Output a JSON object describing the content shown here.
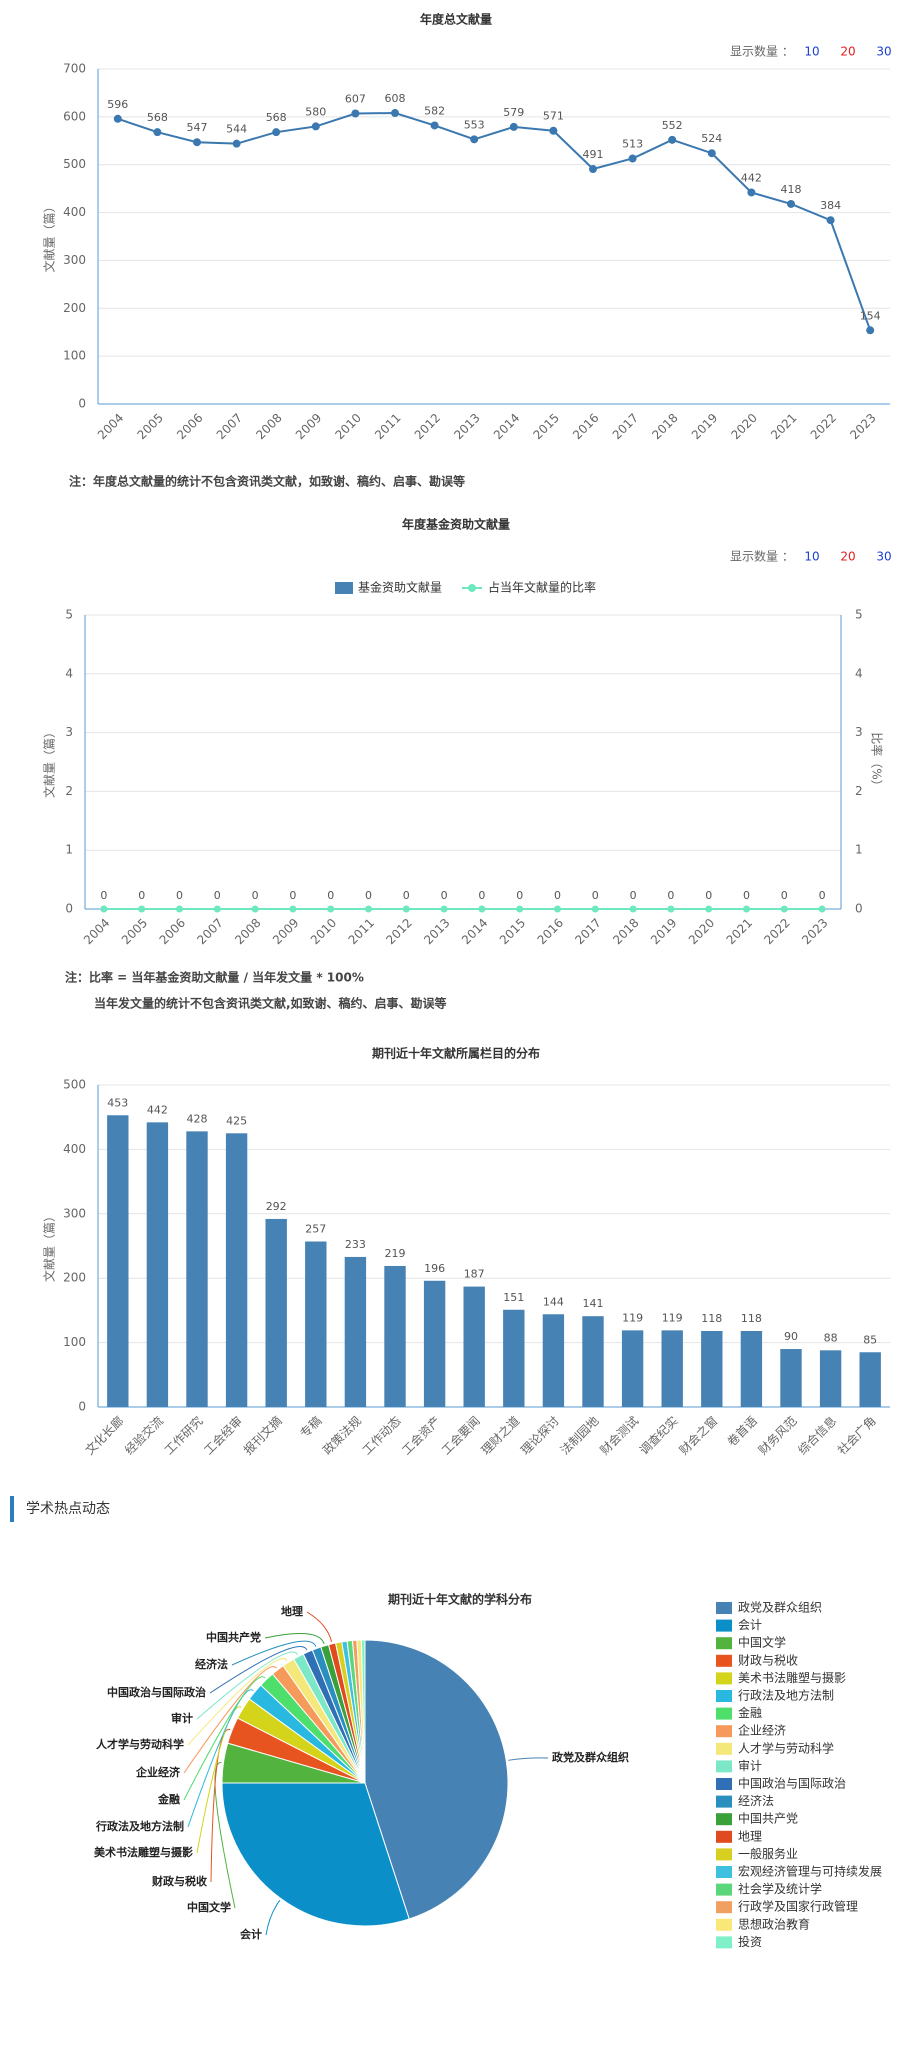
{
  "section_title": "学术热点动态",
  "chart_data": [
    {
      "type": "line",
      "title": "年度总文献量",
      "controls": {
        "label": "显示数量 ：",
        "options": [
          "10",
          "20",
          "30"
        ]
      },
      "y_label": "文献量（篇）",
      "categories": [
        "2004",
        "2005",
        "2006",
        "2007",
        "2008",
        "2009",
        "2010",
        "2011",
        "2012",
        "2013",
        "2014",
        "2015",
        "2016",
        "2017",
        "2018",
        "2019",
        "2020",
        "2021",
        "2022",
        "2023"
      ],
      "values": [
        596,
        568,
        547,
        544,
        568,
        580,
        607,
        608,
        582,
        553,
        579,
        571,
        491,
        513,
        552,
        524,
        442,
        418,
        384,
        154
      ],
      "color": "#3b78b0",
      "ylim": [
        0,
        700
      ],
      "yticks": [
        0,
        100,
        200,
        300,
        400,
        500,
        600,
        700
      ],
      "grid": true,
      "note": "注：年度总文献量的统计不包含资讯类文献，如致谢、稿约、启事、勘误等"
    },
    {
      "type": "combo",
      "title": "年度基金资助文献量",
      "controls": {
        "label": "显示数量 ：",
        "options": [
          "10",
          "20",
          "30"
        ]
      },
      "y_label": "文献量（篇）",
      "y2_label": "比率（%）",
      "categories": [
        "2004",
        "2005",
        "2006",
        "2007",
        "2008",
        "2009",
        "2010",
        "2011",
        "2012",
        "2013",
        "2014",
        "2015",
        "2016",
        "2017",
        "2018",
        "2019",
        "2020",
        "2021",
        "2022",
        "2023"
      ],
      "series": [
        {
          "name": "基金资助文献量",
          "color": "#4682b4",
          "values": [
            0,
            0,
            0,
            0,
            0,
            0,
            0,
            0,
            0,
            0,
            0,
            0,
            0,
            0,
            0,
            0,
            0,
            0,
            0,
            0
          ]
        },
        {
          "name": "占当年文献量的比率",
          "color": "#6ee8c0",
          "axis": "y2",
          "values": [
            0,
            0,
            0,
            0,
            0,
            0,
            0,
            0,
            0,
            0,
            0,
            0,
            0,
            0,
            0,
            0,
            0,
            0,
            0,
            0
          ]
        }
      ],
      "ylim": [
        0,
        5
      ],
      "yticks": [
        0,
        1,
        2,
        3,
        4,
        5
      ],
      "y2lim": [
        0,
        5
      ],
      "y2ticks": [
        0,
        1,
        2,
        3,
        4,
        5
      ],
      "grid": true,
      "notes": [
        "注：比率 = 当年基金资助文献量 / 当年发文量 * 100%",
        "当年发文量的统计不包含资讯类文献,如致谢、稿约、启事、勘误等"
      ]
    },
    {
      "type": "bar",
      "title": "期刊近十年文献所属栏目的分布",
      "y_label": "文献量（篇）",
      "categories": [
        "文化长廊",
        "经验交流",
        "工作研究",
        "工会经审",
        "报刊文摘",
        "专稿",
        "政策法规",
        "工作动态",
        "工会资产",
        "工会要闻",
        "理财之道",
        "理论探讨",
        "法制园地",
        "财会测试",
        "调查纪实",
        "财会之窗",
        "卷首语",
        "财务风范",
        "综合信息",
        "社会广角"
      ],
      "values": [
        453,
        442,
        428,
        425,
        292,
        257,
        233,
        219,
        196,
        187,
        151,
        144,
        141,
        119,
        119,
        118,
        118,
        90,
        88,
        85
      ],
      "color": "#4682b4",
      "ylim": [
        0,
        500
      ],
      "yticks": [
        0,
        100,
        200,
        300,
        400,
        500
      ],
      "grid": true
    },
    {
      "type": "pie",
      "title": "期刊近十年文献的学科分布",
      "categories": [
        "政党及群众组织",
        "会计",
        "中国文学",
        "财政与税收",
        "美术书法雕塑与摄影",
        "行政法及地方法制",
        "金融",
        "企业经济",
        "人才学与劳动科学",
        "审计",
        "中国政治与国际政治",
        "经济法",
        "中国共产党",
        "地理",
        "一般服务业",
        "宏观经济管理与可持续发展",
        "社会学及统计学",
        "行政学及国家行政管理",
        "思想政治教育",
        "投资"
      ],
      "values": [
        45,
        30,
        4.5,
        3,
        2.5,
        2,
        1.8,
        1.5,
        1.4,
        1.2,
        1.1,
        1,
        0.9,
        0.8,
        0.7,
        0.6,
        0.6,
        0.5,
        0.5,
        0.4
      ],
      "colors": [
        "#4682b4",
        "#0a8fc9",
        "#52b33e",
        "#e8541f",
        "#d4d41a",
        "#29b9e0",
        "#4dde6b",
        "#f59a5a",
        "#f5e87a",
        "#7de8c8",
        "#2f6fb5",
        "#2a8fbf",
        "#3aa03a",
        "#e04a1f",
        "#d8d020",
        "#40c0e0",
        "#5cd67a",
        "#f0a060",
        "#f8e878",
        "#80f0c8"
      ],
      "legend": "right"
    }
  ]
}
